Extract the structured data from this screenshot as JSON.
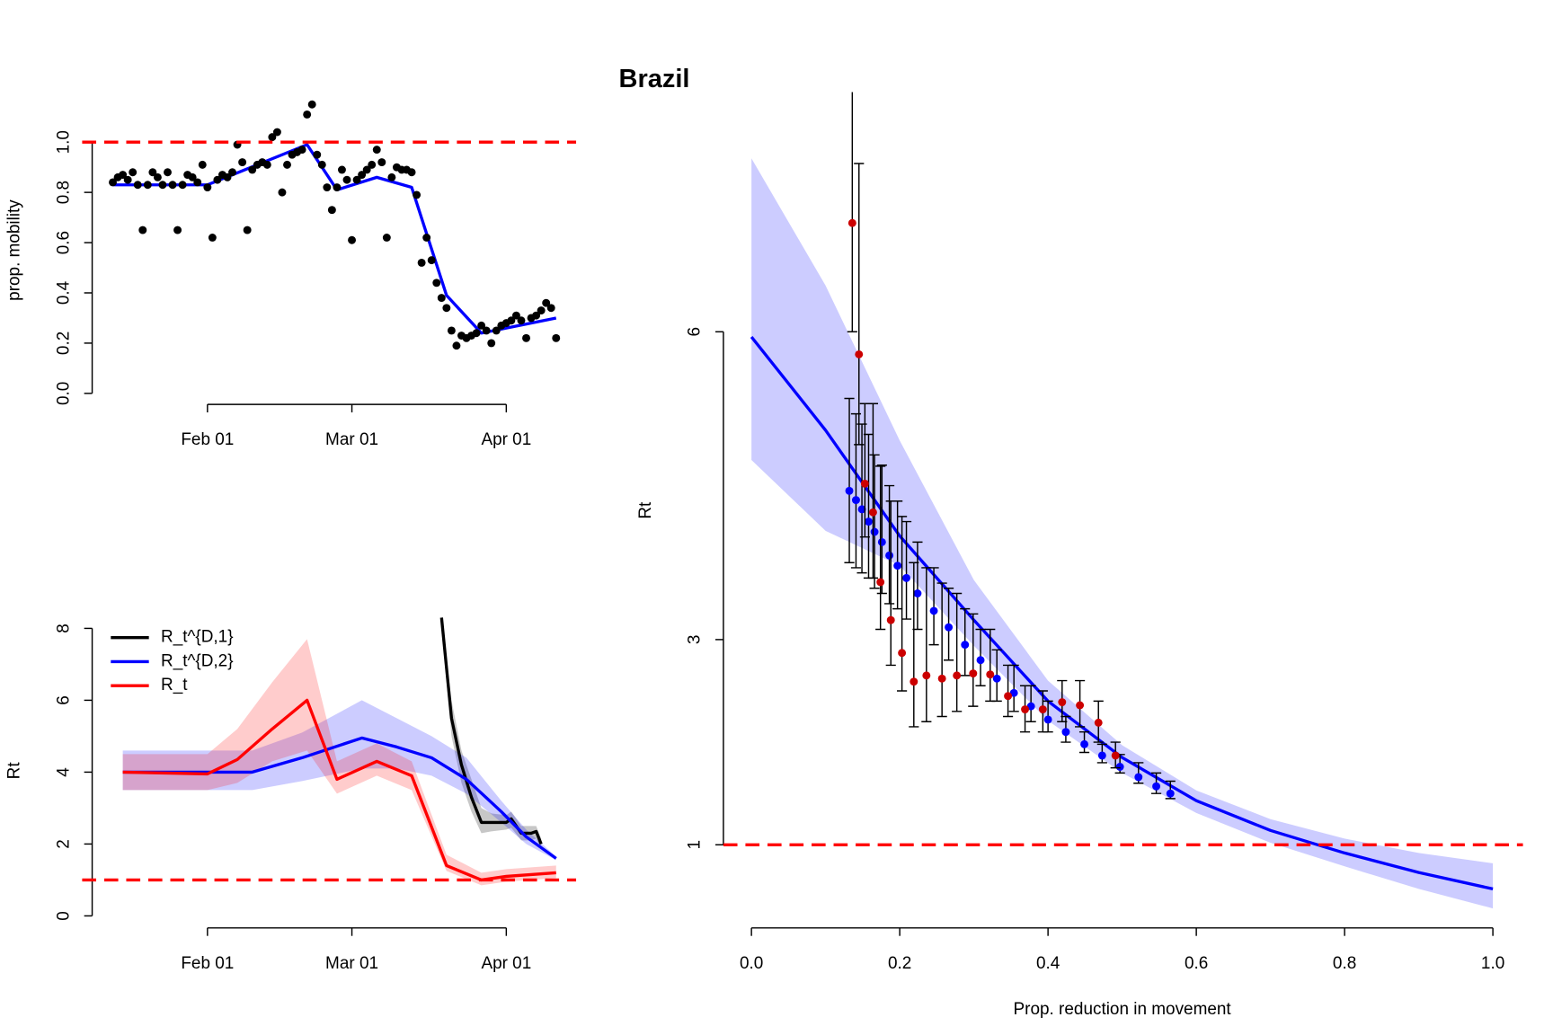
{
  "title": "Brazil",
  "chart_data": [
    {
      "type": "line",
      "ylabel": "prop. mobility",
      "xlim": [
        "Jan 13",
        "Apr 12"
      ],
      "xticks": [
        "Feb 01",
        "Mar 01",
        "Apr 01"
      ],
      "ylim": [
        0,
        1.15
      ],
      "yticks": [
        {
          "value": 0,
          "label": "0.0"
        },
        0.2,
        0.4,
        0.6,
        0.8,
        {
          "value": 1,
          "label": "1.0"
        }
      ],
      "reference_line": 1,
      "reference_color": "#ff0000",
      "series": [
        {
          "type": "scatter",
          "color": "#000000",
          "x": [
            "Jan 13",
            "Jan 14",
            "Jan 15",
            "Jan 16",
            "Jan 17",
            "Jan 18",
            "Jan 19",
            "Jan 20",
            "Jan 21",
            "Jan 22",
            "Jan 23",
            "Jan 24",
            "Jan 25",
            "Jan 26",
            "Jan 27",
            "Jan 28",
            "Jan 29",
            "Jan 30",
            "Jan 31",
            "Feb 01",
            "Feb 02",
            "Feb 03",
            "Feb 04",
            "Feb 05",
            "Feb 06",
            "Feb 07",
            "Feb 08",
            "Feb 09",
            "Feb 10",
            "Feb 11",
            "Feb 12",
            "Feb 13",
            "Feb 14",
            "Feb 15",
            "Feb 16",
            "Feb 17",
            "Feb 18",
            "Feb 19",
            "Feb 20",
            "Feb 21",
            "Feb 22",
            "Feb 23",
            "Feb 24",
            "Feb 25",
            "Feb 26",
            "Feb 27",
            "Feb 28",
            "Feb 29",
            "Mar 01",
            "Mar 02",
            "Mar 03",
            "Mar 04",
            "Mar 05",
            "Mar 06",
            "Mar 07",
            "Mar 08",
            "Mar 09",
            "Mar 10",
            "Mar 11",
            "Mar 12",
            "Mar 13",
            "Mar 14",
            "Mar 15",
            "Mar 16",
            "Mar 17",
            "Mar 18",
            "Mar 19",
            "Mar 20",
            "Mar 21",
            "Mar 22",
            "Mar 23",
            "Mar 24",
            "Mar 25",
            "Mar 26",
            "Mar 27",
            "Mar 28",
            "Mar 29",
            "Mar 30",
            "Mar 31",
            "Apr 01",
            "Apr 02",
            "Apr 03",
            "Apr 04",
            "Apr 05",
            "Apr 06",
            "Apr 07",
            "Apr 08",
            "Apr 09",
            "Apr 10",
            "Apr 11"
          ],
          "values": [
            0.84,
            0.86,
            0.87,
            0.85,
            0.88,
            0.83,
            0.65,
            0.83,
            0.88,
            0.86,
            0.83,
            0.88,
            0.83,
            0.65,
            0.83,
            0.87,
            0.86,
            0.84,
            0.91,
            0.82,
            0.62,
            0.85,
            0.87,
            0.86,
            0.88,
            0.99,
            0.92,
            0.65,
            0.89,
            0.91,
            0.92,
            0.91,
            1.02,
            1.04,
            0.8,
            0.91,
            0.95,
            0.96,
            0.97,
            1.11,
            1.15,
            0.95,
            0.91,
            0.82,
            0.73,
            0.82,
            0.89,
            0.85,
            0.61,
            0.85,
            0.87,
            0.89,
            0.91,
            0.97,
            0.92,
            0.62,
            0.86,
            0.9,
            0.89,
            0.89,
            0.88,
            0.79,
            0.52,
            0.62,
            0.53,
            0.44,
            0.38,
            0.34,
            0.25,
            0.19,
            0.23,
            0.22,
            0.23,
            0.24,
            0.27,
            0.25,
            0.2,
            0.25,
            0.27,
            0.28,
            0.29,
            0.31,
            0.29,
            0.22,
            0.3,
            0.31,
            0.33,
            0.36,
            0.34,
            0.22
          ]
        },
        {
          "type": "line",
          "color": "#0000ff",
          "x": [
            "Jan 13",
            "Feb 01",
            "Feb 21",
            "Feb 27",
            "Mar 06",
            "Mar 13",
            "Mar 20",
            "Mar 27",
            "Apr 11"
          ],
          "values": [
            0.83,
            0.83,
            0.99,
            0.81,
            0.86,
            0.82,
            0.39,
            0.24,
            0.3
          ]
        }
      ]
    },
    {
      "type": "line",
      "ylabel": "Rt",
      "xlim": [
        "Jan 13",
        "Apr 12"
      ],
      "xticks": [
        "Feb 01",
        "Mar 01",
        "Apr 01"
      ],
      "ylim": [
        0,
        8.3
      ],
      "yticks": [
        0,
        2,
        4,
        6,
        8
      ],
      "reference_line": 1,
      "reference_color": "#ff0000",
      "legend": "top-left",
      "series": [
        {
          "type": "line",
          "name": "R_t^{D,1}",
          "color": "#000000",
          "x": [
            "Mar 19",
            "Mar 21",
            "Mar 23",
            "Mar 25",
            "Mar 27",
            "Mar 29",
            "Apr 01",
            "Apr 02",
            "Apr 04",
            "Apr 06",
            "Apr 07",
            "Apr 08"
          ],
          "values": [
            8.3,
            5.5,
            4.2,
            3.3,
            2.6,
            2.6,
            2.6,
            2.7,
            2.3,
            2.3,
            2.35,
            2.0
          ],
          "lower": [
            8.0,
            5.0,
            3.7,
            2.9,
            2.3,
            2.35,
            2.4,
            2.45,
            2.1,
            2.1,
            2.15,
            1.85
          ],
          "upper": [
            8.3,
            6.0,
            4.6,
            3.8,
            3.0,
            2.85,
            2.8,
            2.9,
            2.5,
            2.5,
            2.5,
            2.15
          ]
        },
        {
          "type": "line",
          "name": "R_t^{D,2}",
          "color": "#0000ff",
          "x": [
            "Jan 15",
            "Feb 01",
            "Feb 10",
            "Feb 20",
            "Mar 03",
            "Mar 10",
            "Mar 17",
            "Mar 24",
            "Mar 31",
            "Apr 05",
            "Apr 11"
          ],
          "values": [
            4.0,
            4.0,
            4.0,
            4.4,
            4.95,
            4.7,
            4.4,
            3.8,
            2.9,
            2.2,
            1.6
          ],
          "lower": [
            3.5,
            3.5,
            3.5,
            3.75,
            4.1,
            4.1,
            3.9,
            3.4,
            2.6,
            2.0,
            1.55
          ],
          "upper": [
            4.6,
            4.6,
            4.6,
            5.1,
            6.0,
            5.5,
            5.0,
            4.4,
            3.2,
            2.4,
            1.65
          ]
        },
        {
          "type": "line",
          "name": "R_t",
          "color": "#ff0000",
          "x": [
            "Jan 15",
            "Feb 01",
            "Feb 07",
            "Feb 14",
            "Feb 21",
            "Feb 27",
            "Mar 06",
            "Mar 13",
            "Mar 20",
            "Mar 27",
            "Apr 01",
            "Apr 11"
          ],
          "values": [
            4.0,
            3.95,
            4.35,
            5.2,
            6.0,
            3.8,
            4.3,
            3.9,
            1.4,
            1.0,
            1.1,
            1.2
          ],
          "lower": [
            3.5,
            3.5,
            3.7,
            4.3,
            4.6,
            3.4,
            3.9,
            3.5,
            1.25,
            0.85,
            0.95,
            1.05
          ],
          "upper": [
            4.5,
            4.5,
            5.2,
            6.5,
            7.7,
            4.3,
            4.8,
            4.3,
            1.7,
            1.2,
            1.3,
            1.4
          ]
        }
      ]
    },
    {
      "type": "scatter",
      "ylabel": "Rt",
      "xlabel": "Prop. reduction in movement",
      "xlim": [
        -0.04,
        1.04
      ],
      "xticks": [
        {
          "value": 0,
          "label": "0.0"
        },
        0.2,
        0.4,
        0.6,
        0.8,
        {
          "value": 1,
          "label": "1.0"
        }
      ],
      "ylim": [
        0.19,
        8.34
      ],
      "yticks": [
        1,
        3,
        6
      ],
      "reference_line": 1,
      "reference_color": "#ff0000",
      "series": [
        {
          "type": "line",
          "color": "#0000ff",
          "x": [
            0,
            0.1,
            0.2,
            0.3,
            0.4,
            0.5,
            0.6,
            0.7,
            0.8,
            0.9,
            1
          ],
          "values": [
            5.95,
            5.04,
            4.01,
            3.19,
            2.4,
            1.85,
            1.43,
            1.14,
            0.92,
            0.73,
            0.57
          ],
          "lower": [
            4.75,
            4.06,
            3.72,
            2.94,
            2.21,
            1.7,
            1.31,
            1.02,
            0.79,
            0.57,
            0.38
          ],
          "upper": [
            7.69,
            6.45,
            4.94,
            3.58,
            2.6,
            1.97,
            1.53,
            1.25,
            1.06,
            0.92,
            0.82
          ]
        },
        {
          "type": "scatter",
          "color": "#0000ff",
          "x": [
            0.132,
            0.141,
            0.149,
            0.158,
            0.166,
            0.176,
            0.186,
            0.197,
            0.209,
            0.224,
            0.246,
            0.266,
            0.288,
            0.309,
            0.331,
            0.354,
            0.377,
            0.4,
            0.424,
            0.449,
            0.473,
            0.497,
            0.522,
            0.546,
            0.565
          ],
          "values": [
            4.45,
            4.36,
            4.27,
            4.15,
            4.05,
            3.95,
            3.82,
            3.72,
            3.6,
            3.45,
            3.28,
            3.12,
            2.95,
            2.8,
            2.62,
            2.48,
            2.35,
            2.22,
            2.1,
            1.98,
            1.87,
            1.76,
            1.66,
            1.57,
            1.5
          ],
          "error_lower": [
            3.75,
            3.7,
            3.65,
            3.6,
            3.5,
            3.45,
            3.35,
            3.3,
            3.2,
            3.1,
            2.95,
            2.8,
            2.65,
            2.55,
            2.4,
            2.3,
            2.2,
            2.1,
            2.0,
            1.9,
            1.8,
            1.7,
            1.6,
            1.5,
            1.45
          ],
          "error_upper": [
            5.35,
            5.2,
            5.1,
            5.0,
            4.8,
            4.7,
            4.5,
            4.35,
            4.15,
            3.95,
            3.7,
            3.5,
            3.3,
            3.1,
            2.9,
            2.75,
            2.55,
            2.4,
            2.25,
            2.1,
            1.98,
            1.88,
            1.8,
            1.7,
            1.62
          ]
        },
        {
          "type": "scatter",
          "color": "#cc0000",
          "x": [
            0.136,
            0.145,
            0.153,
            0.164,
            0.174,
            0.188,
            0.203,
            0.219,
            0.236,
            0.257,
            0.277,
            0.299,
            0.322,
            0.346,
            0.369,
            0.393,
            0.419,
            0.443,
            0.468,
            0.491
          ],
          "values": [
            7.06,
            5.78,
            4.52,
            4.24,
            3.56,
            3.19,
            2.87,
            2.59,
            2.65,
            2.62,
            2.65,
            2.67,
            2.66,
            2.45,
            2.32,
            2.32,
            2.39,
            2.36,
            2.19,
            1.87
          ],
          "error_lower": [
            6.0,
            4.9,
            4.0,
            3.6,
            3.1,
            2.75,
            2.5,
            2.15,
            2.2,
            2.25,
            2.3,
            2.35,
            2.4,
            2.25,
            2.1,
            2.1,
            2.2,
            2.15,
            2.0,
            1.75
          ],
          "error_upper": [
            9.5,
            7.64,
            5.3,
            5.3,
            4.69,
            4.35,
            4.2,
            3.75,
            3.7,
            3.55,
            3.45,
            3.25,
            3.1,
            2.75,
            2.55,
            2.5,
            2.6,
            2.6,
            2.4,
            2.0
          ]
        }
      ]
    }
  ]
}
